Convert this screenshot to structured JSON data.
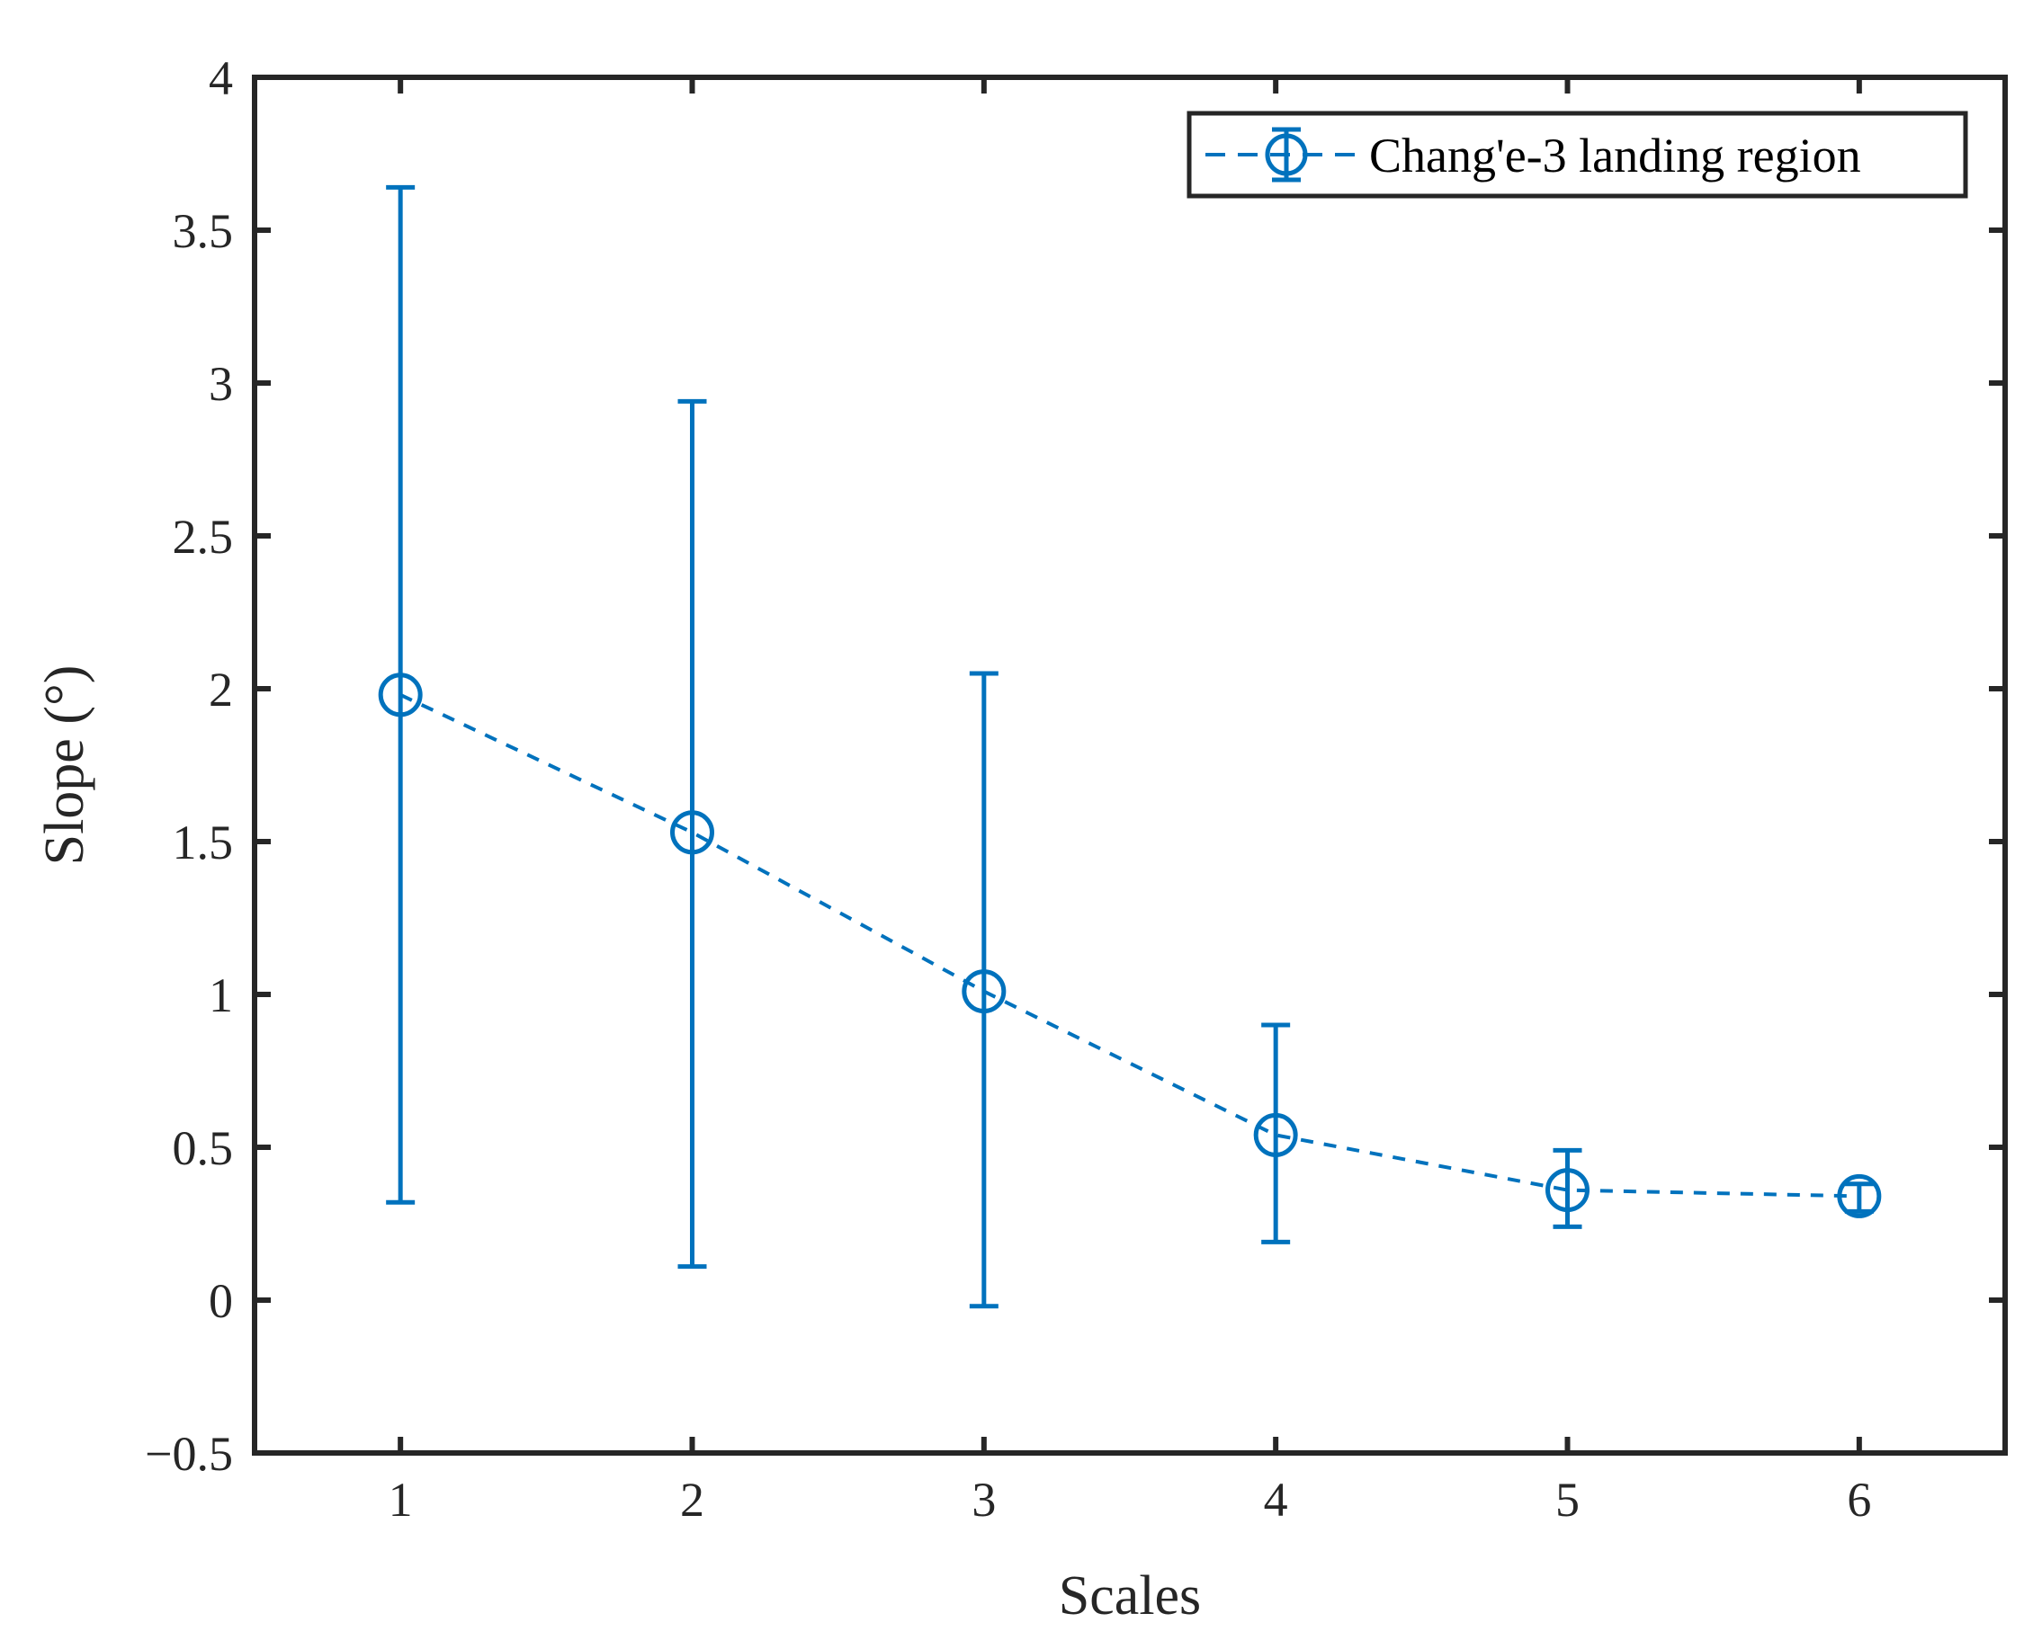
{
  "chart_data": {
    "type": "line",
    "title": "",
    "xlabel": "Scales",
    "ylabel": "Slope (°)",
    "xlim": [
      0.5,
      6.5
    ],
    "ylim": [
      -0.5,
      4
    ],
    "x_ticks": [
      "1",
      "2",
      "3",
      "4",
      "5",
      "6"
    ],
    "x_tick_values": [
      1,
      2,
      3,
      4,
      5,
      6
    ],
    "y_ticks": [
      "−0.5",
      "0",
      "0.5",
      "1",
      "1.5",
      "2",
      "2.5",
      "3",
      "3.5",
      "4"
    ],
    "y_tick_values": [
      -0.5,
      0,
      0.5,
      1,
      1.5,
      2,
      2.5,
      3,
      3.5,
      4
    ],
    "grid": false,
    "legend_position": "top-right",
    "series": [
      {
        "name": "Chang'e-3 landing region",
        "color": "#0072BD",
        "line_style": "dashed",
        "marker": "circle",
        "x": [
          1,
          2,
          3,
          4,
          5,
          6
        ],
        "y": [
          1.98,
          1.53,
          1.01,
          0.54,
          0.36,
          0.34
        ],
        "error_lower": [
          0.32,
          0.11,
          -0.02,
          0.19,
          0.24,
          0.29
        ],
        "error_upper": [
          3.64,
          2.94,
          2.05,
          0.9,
          0.49,
          0.38
        ]
      }
    ]
  }
}
